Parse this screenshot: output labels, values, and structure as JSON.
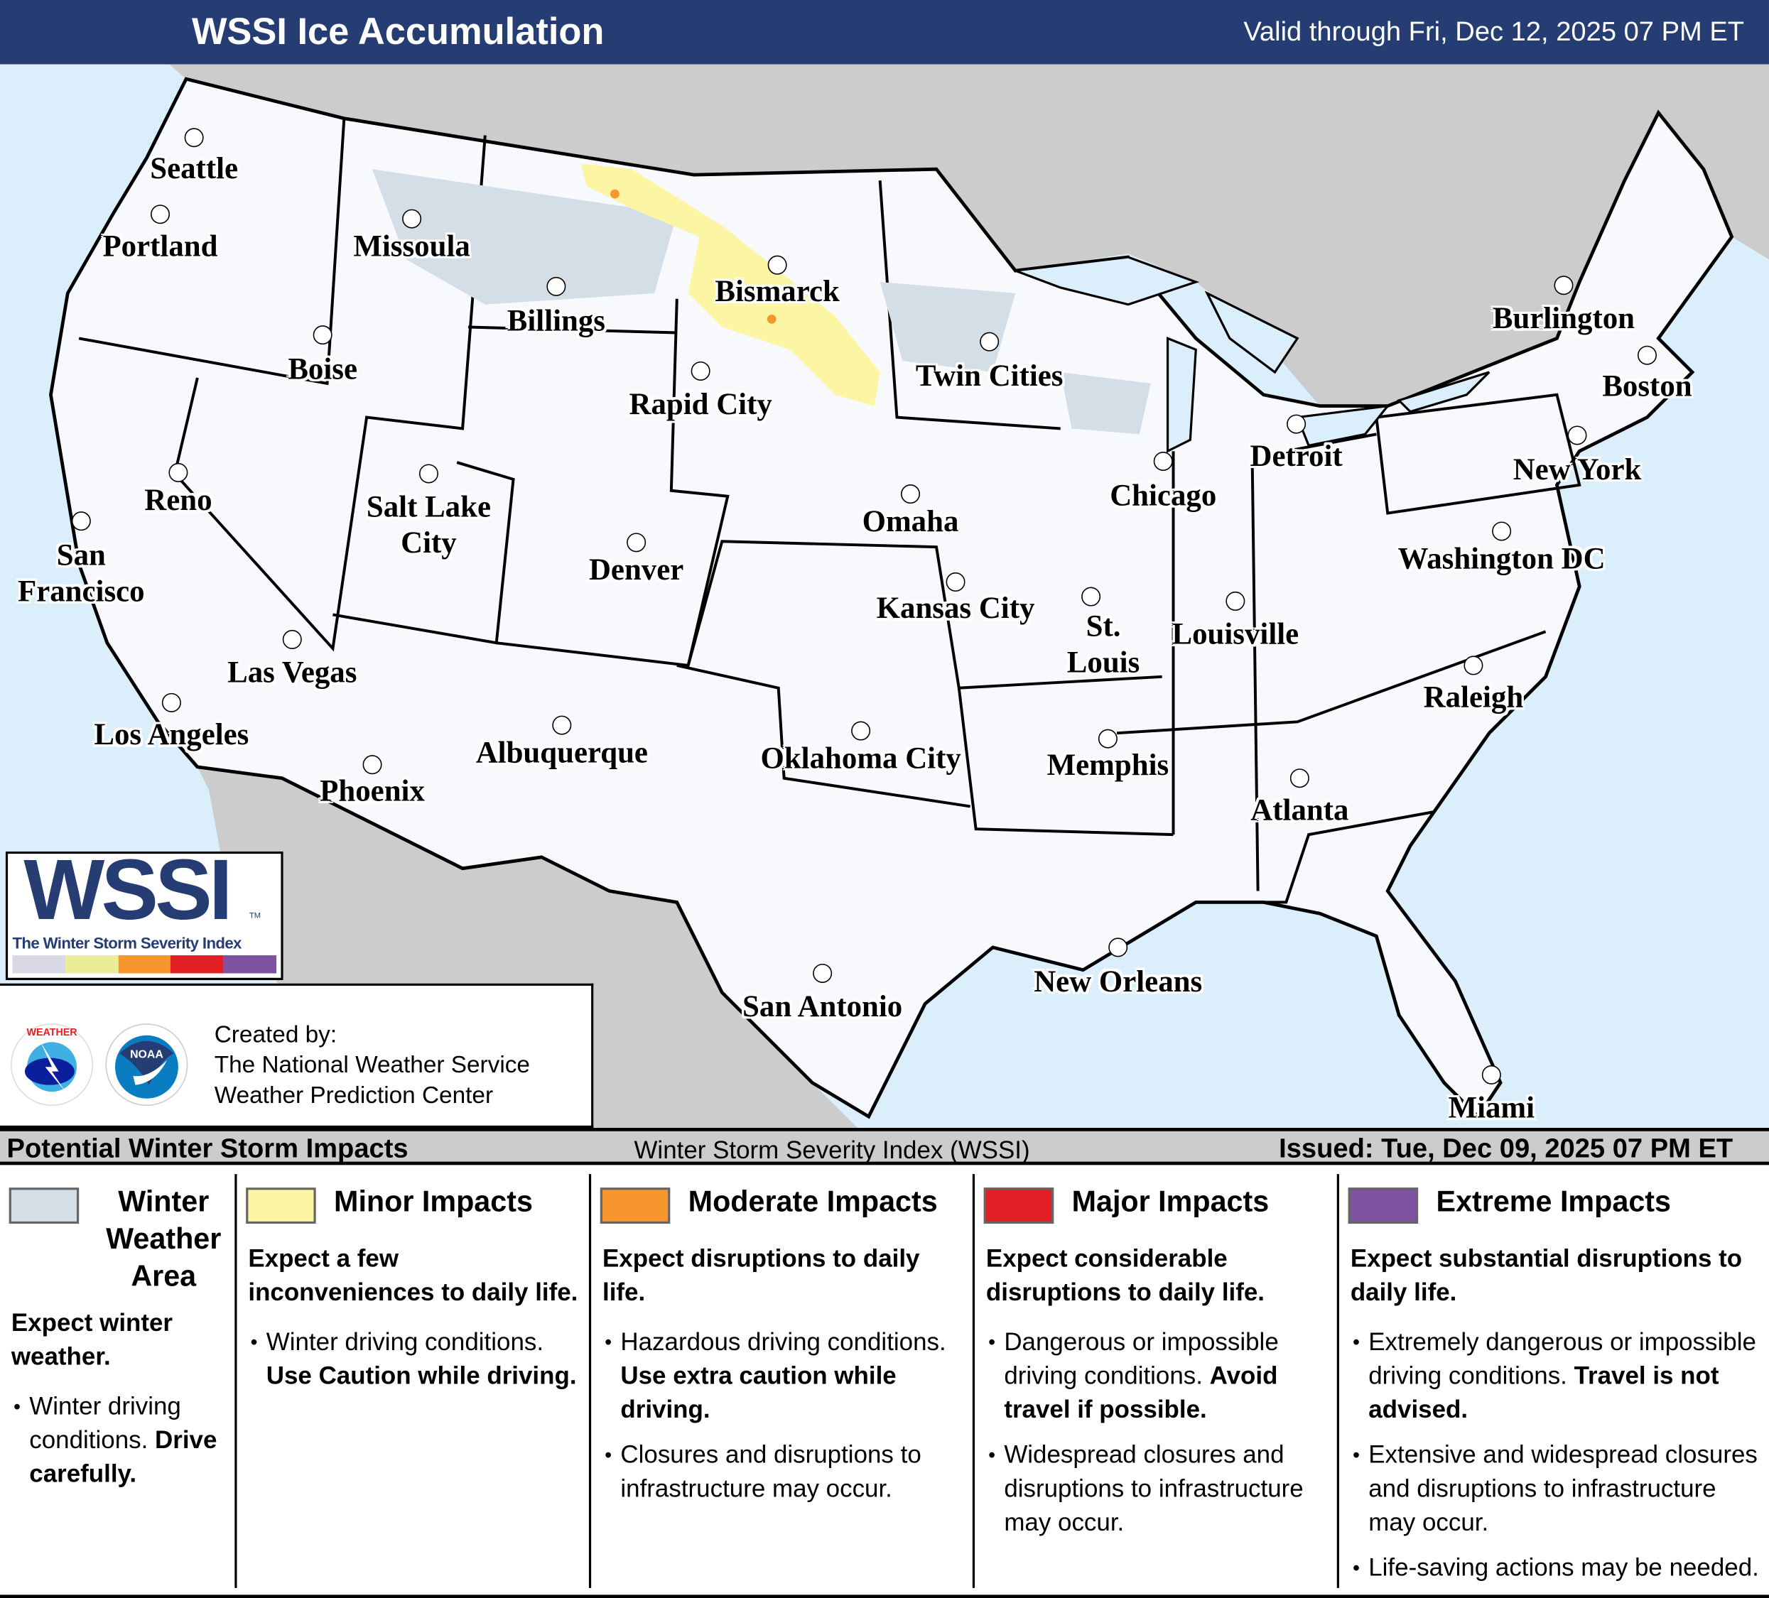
{
  "header": {
    "title": "WSSI Ice Accumulation",
    "valid": "Valid through Fri, Dec 12, 2025 07 PM ET"
  },
  "colors": {
    "header_bg": "#253d73",
    "us_land": "#f7f9fc",
    "outside_land": "#cccccc",
    "water": "#dbeefc",
    "winter_weather_area": "#d3dee6",
    "minor": "#fcf6a4",
    "moderate": "#f7962d",
    "major": "#e31e25",
    "extreme": "#7c52a1"
  },
  "map": {
    "cities": [
      "Seattle",
      "Portland",
      "Missoula",
      "Billings",
      "Boise",
      "Bismarck",
      "Rapid City",
      "Twin Cities",
      "Reno",
      "Salt Lake City",
      "San Francisco",
      "Denver",
      "Omaha",
      "Chicago",
      "Detroit",
      "Burlington",
      "Boston",
      "New York",
      "Washington DC",
      "Kansas City",
      "St. Louis",
      "Louisville",
      "Las Vegas",
      "Los Angeles",
      "Phoenix",
      "Albuquerque",
      "Oklahoma City",
      "Memphis",
      "Raleigh",
      "Atlanta",
      "New Orleans",
      "San Antonio",
      "Miami"
    ]
  },
  "logo": {
    "wordmark": "WSSI",
    "tm": "TM",
    "subtitle": "The Winter Storm Severity Index"
  },
  "credit": {
    "line1": "Created by:",
    "line2": "The National Weather Service",
    "line3": "Weather Prediction Center",
    "nws_logo": "NATIONAL WEATHER SERVICE",
    "noaa_logo": "NOAA"
  },
  "bar": {
    "left": "Potential Winter Storm Impacts",
    "center": "Winter Storm Severity Index (WSSI)",
    "right": "Issued: Tue, Dec 09, 2025 07 PM ET"
  },
  "legend": [
    {
      "title": "Winter Weather Area",
      "head": "Expect winter weather.",
      "bullets": [
        {
          "text": "Winter driving conditions. ",
          "bold": "Drive carefully."
        }
      ]
    },
    {
      "title": "Minor Impacts",
      "head": "Expect a few inconveniences to daily life.",
      "bullets": [
        {
          "text": "Winter driving conditions. ",
          "bold": "Use Caution while driving."
        }
      ]
    },
    {
      "title": "Moderate Impacts",
      "head": "Expect disruptions to daily life.",
      "bullets": [
        {
          "text": "Hazardous driving conditions. ",
          "bold": "Use extra caution while driving."
        },
        {
          "text": "Closures and disruptions to infrastructure may occur.",
          "bold": ""
        }
      ]
    },
    {
      "title": "Major Impacts",
      "head": "Expect considerable disruptions to daily life.",
      "bullets": [
        {
          "text": "Dangerous or impossible driving conditions. ",
          "bold": "Avoid travel if possible."
        },
        {
          "text": "Widespread closures and disruptions to infrastructure may occur.",
          "bold": ""
        }
      ]
    },
    {
      "title": "Extreme Impacts",
      "head": "Expect substantial disruptions to daily life.",
      "bullets": [
        {
          "text": "Extremely dangerous or impossible driving conditions. ",
          "bold": "Travel is not advised."
        },
        {
          "text": "Extensive and widespread closures and disruptions to infrastructure may occur.",
          "bold": ""
        },
        {
          "text": "Life-saving actions may be needed.",
          "bold": ""
        }
      ]
    }
  ]
}
